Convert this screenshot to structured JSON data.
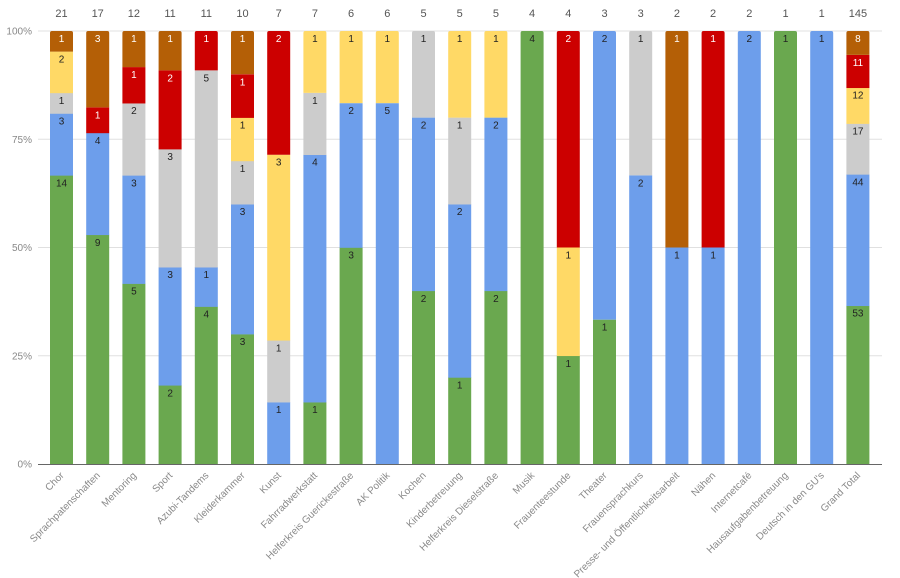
{
  "chart_data": {
    "type": "bar",
    "stacked": true,
    "normalized_percent": true,
    "title": "",
    "xlabel": "",
    "ylabel": "",
    "ylim": [
      0,
      100
    ],
    "ytick_labels": [
      "0%",
      "25%",
      "50%",
      "75%",
      "100%"
    ],
    "yticks": [
      0,
      25,
      50,
      75,
      100
    ],
    "grid": true,
    "legend": "none",
    "categories": [
      "Chor",
      "Sprachpatenschaften",
      "Mentoring",
      "Sport",
      "Azubi-Tandems",
      "Kleiderkammer",
      "Kunst",
      "Fahrradwerkstatt",
      "Helferkreis Guerickestraße",
      "AK Politik",
      "Kochen",
      "Kinderbetreuung",
      "Helferkreis Dieselstraße",
      "Musik",
      "Frauenteestunde",
      "Theater",
      "Frauensprachkurs",
      "Presse- und Öffentlichkeitsarbeit",
      "Nähen",
      "Internetcafé",
      "Hausaufgabenbetreuung",
      "Deutsch in den GU's",
      "Grand Total"
    ],
    "totals": [
      21,
      17,
      12,
      11,
      11,
      10,
      7,
      7,
      6,
      6,
      5,
      5,
      5,
      4,
      4,
      3,
      3,
      2,
      2,
      2,
      1,
      1,
      145
    ],
    "series": [
      {
        "name": "series-green",
        "color": "#6aa84f",
        "label_color": "#222222",
        "values": [
          14,
          9,
          5,
          2,
          4,
          3,
          0,
          1,
          3,
          0,
          2,
          1,
          2,
          4,
          1,
          1,
          0,
          0,
          0,
          0,
          1,
          0,
          53
        ]
      },
      {
        "name": "series-blue",
        "color": "#6d9eeb",
        "label_color": "#222222",
        "values": [
          3,
          4,
          3,
          3,
          1,
          3,
          1,
          4,
          2,
          5,
          2,
          2,
          2,
          0,
          0,
          2,
          2,
          1,
          1,
          2,
          0,
          1,
          44
        ]
      },
      {
        "name": "series-gray",
        "color": "#cccccc",
        "label_color": "#222222",
        "values": [
          1,
          0,
          2,
          3,
          5,
          1,
          1,
          1,
          0,
          0,
          1,
          1,
          0,
          0,
          0,
          0,
          1,
          0,
          0,
          0,
          0,
          0,
          17
        ]
      },
      {
        "name": "series-yellow",
        "color": "#ffd966",
        "label_color": "#222222",
        "values": [
          2,
          0,
          0,
          0,
          0,
          1,
          3,
          1,
          1,
          1,
          0,
          1,
          1,
          0,
          1,
          0,
          0,
          0,
          0,
          0,
          0,
          0,
          12
        ]
      },
      {
        "name": "series-red",
        "color": "#cc0000",
        "label_color": "#ffffff",
        "values": [
          0,
          1,
          1,
          2,
          1,
          1,
          2,
          0,
          0,
          0,
          0,
          0,
          0,
          0,
          2,
          0,
          0,
          0,
          1,
          0,
          0,
          0,
          11
        ]
      },
      {
        "name": "series-brown",
        "color": "#b45f06",
        "label_color": "#ffffff",
        "values": [
          1,
          3,
          1,
          1,
          0,
          1,
          0,
          0,
          0,
          0,
          0,
          0,
          0,
          0,
          0,
          0,
          0,
          1,
          0,
          0,
          0,
          0,
          8
        ]
      }
    ]
  }
}
